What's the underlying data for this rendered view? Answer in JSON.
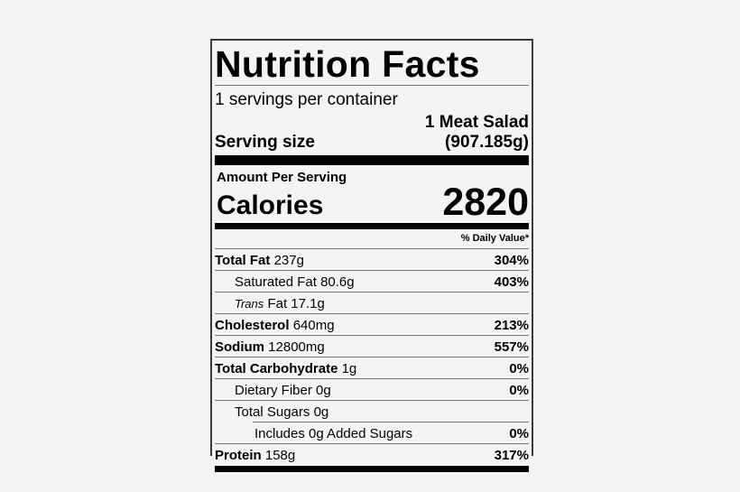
{
  "label": {
    "title": "Nutrition Facts",
    "servings_per_container": "1 servings per container",
    "serving_size_label": "Serving size",
    "serving_size_desc": "1 Meat Salad",
    "serving_size_weight": "(907.185g)",
    "amount_per_serving": "Amount Per Serving",
    "calories_label": "Calories",
    "calories_value": "2820",
    "daily_value_header": "% Daily Value*",
    "nutrients": [
      {
        "name": "Total Fat",
        "amount": "237g",
        "dv": "304%",
        "bold": true,
        "indent": 0
      },
      {
        "name": "Saturated Fat",
        "amount": "80.6g",
        "dv": "403%",
        "bold": false,
        "indent": 1
      },
      {
        "name_italic": "Trans",
        "name": "Fat",
        "amount": "17.1g",
        "dv": "",
        "bold": false,
        "indent": 1
      },
      {
        "name": "Cholesterol",
        "amount": "640mg",
        "dv": "213%",
        "bold": true,
        "indent": 0
      },
      {
        "name": "Sodium",
        "amount": "12800mg",
        "dv": "557%",
        "bold": true,
        "indent": 0
      },
      {
        "name": "Total Carbohydrate",
        "amount": "1g",
        "dv": "0%",
        "bold": true,
        "indent": 0
      },
      {
        "name": "Dietary Fiber",
        "amount": "0g",
        "dv": "0%",
        "bold": false,
        "indent": 1
      },
      {
        "name": "Total Sugars",
        "amount": "0g",
        "dv": "",
        "bold": false,
        "indent": 1
      },
      {
        "name": "Includes 0g Added Sugars",
        "amount": "",
        "dv": "0%",
        "bold": false,
        "indent": 2
      },
      {
        "name": "Protein",
        "amount": "158g",
        "dv": "317%",
        "bold": true,
        "indent": 0
      }
    ]
  }
}
